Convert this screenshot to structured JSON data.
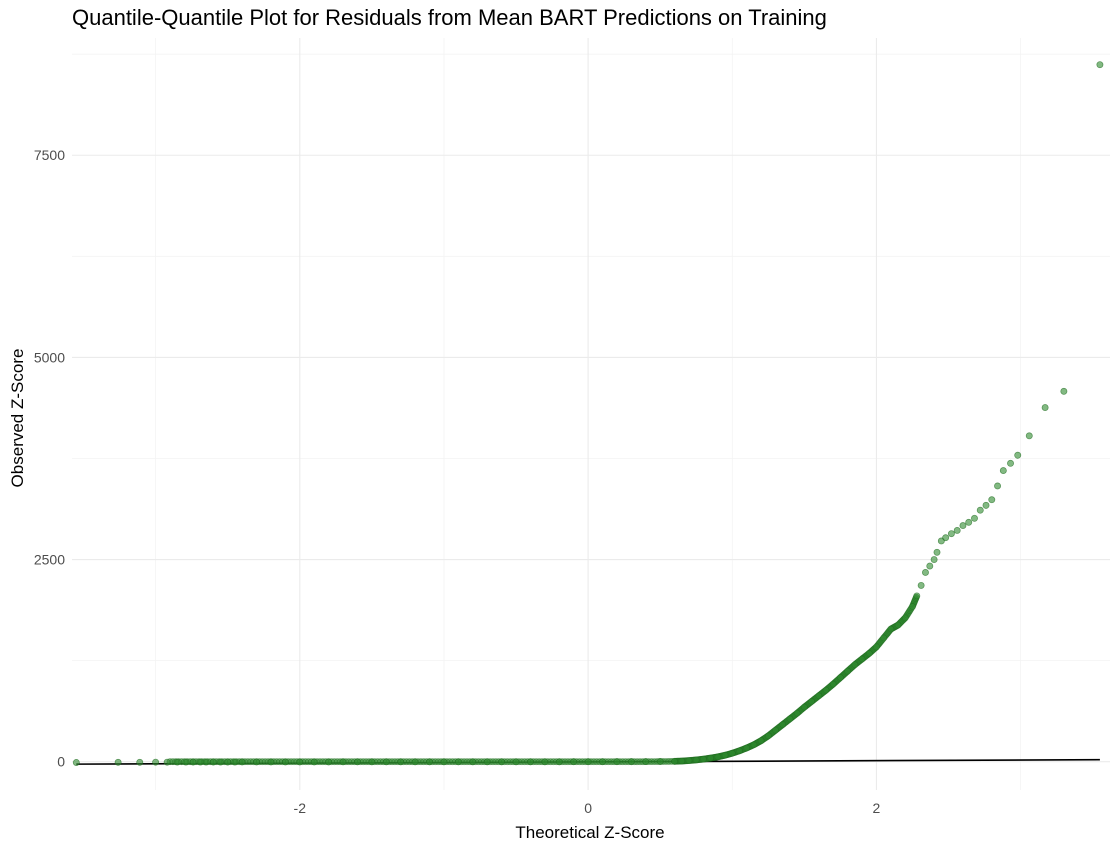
{
  "chart_data": {
    "type": "scatter",
    "title": "Quantile-Quantile Plot for Residuals from Mean BART Predictions on Training",
    "xlabel": "Theoretical Z-Score",
    "ylabel": "Observed Z-Score",
    "xlim": [
      -3.58,
      3.62
    ],
    "ylim": [
      -350,
      8950
    ],
    "x_ticks": [
      -2,
      0,
      2
    ],
    "x_tick_labels": [
      "-2",
      "0",
      "2"
    ],
    "x_minor_ticks": [
      -3,
      -1,
      1,
      3
    ],
    "y_ticks": [
      0,
      2500,
      5000,
      7500
    ],
    "y_tick_labels": [
      "0",
      "2500",
      "5000",
      "7500"
    ],
    "y_minor_ticks": [
      1250,
      3750,
      6250,
      8750
    ],
    "grid": true,
    "point_color": "#2e8b2e",
    "point_edge_color": "#1f6b1f",
    "point_opacity": 0.6,
    "reference_line": {
      "color": "#000000",
      "points": [
        [
          -3.55,
          -30
        ],
        [
          3.55,
          25
        ]
      ]
    },
    "series": [
      {
        "values": [
          [
            -3.55,
            -10
          ],
          [
            -3.26,
            -8
          ],
          [
            -3.11,
            -7
          ],
          [
            -3.0,
            -6
          ],
          [
            -2.92,
            -6
          ],
          [
            -2.85,
            -5
          ],
          [
            -2.79,
            -5
          ],
          [
            -2.74,
            -5
          ],
          [
            -2.69,
            -4
          ],
          [
            -2.65,
            -4
          ],
          [
            -2.6,
            -4
          ],
          [
            -2.55,
            -4
          ],
          [
            -2.5,
            -4
          ],
          [
            -2.45,
            -4
          ],
          [
            -2.4,
            -3
          ],
          [
            -2.3,
            -3
          ],
          [
            -2.2,
            -3
          ],
          [
            -2.1,
            -3
          ],
          [
            -2.0,
            -3
          ],
          [
            -1.9,
            -3
          ],
          [
            -1.8,
            -3
          ],
          [
            -1.7,
            -2
          ],
          [
            -1.6,
            -2
          ],
          [
            -1.5,
            -2
          ],
          [
            -1.4,
            -2
          ],
          [
            -1.3,
            -2
          ],
          [
            -1.2,
            -2
          ],
          [
            -1.1,
            -2
          ],
          [
            -1.0,
            -2
          ],
          [
            -0.9,
            -2
          ],
          [
            -0.8,
            -2
          ],
          [
            -0.7,
            -1
          ],
          [
            -0.6,
            -1
          ],
          [
            -0.5,
            -1
          ],
          [
            -0.4,
            -1
          ],
          [
            -0.3,
            -1
          ],
          [
            -0.2,
            -1
          ],
          [
            -0.1,
            0
          ],
          [
            0.0,
            0
          ],
          [
            0.1,
            0
          ],
          [
            0.2,
            1
          ],
          [
            0.3,
            1
          ],
          [
            0.4,
            2
          ],
          [
            0.5,
            3
          ],
          [
            0.6,
            5
          ],
          [
            0.65,
            8
          ],
          [
            0.7,
            14
          ],
          [
            0.75,
            22
          ],
          [
            0.8,
            32
          ],
          [
            0.85,
            45
          ],
          [
            0.9,
            60
          ],
          [
            0.95,
            80
          ],
          [
            1.0,
            105
          ],
          [
            1.05,
            135
          ],
          [
            1.1,
            170
          ],
          [
            1.15,
            210
          ],
          [
            1.2,
            260
          ],
          [
            1.25,
            320
          ],
          [
            1.3,
            390
          ],
          [
            1.35,
            460
          ],
          [
            1.4,
            530
          ],
          [
            1.45,
            600
          ],
          [
            1.5,
            675
          ],
          [
            1.55,
            745
          ],
          [
            1.6,
            815
          ],
          [
            1.65,
            885
          ],
          [
            1.7,
            960
          ],
          [
            1.75,
            1040
          ],
          [
            1.8,
            1120
          ],
          [
            1.85,
            1200
          ],
          [
            1.9,
            1270
          ],
          [
            1.95,
            1340
          ],
          [
            2.0,
            1420
          ],
          [
            2.05,
            1530
          ],
          [
            2.1,
            1640
          ],
          [
            2.15,
            1690
          ],
          [
            2.2,
            1780
          ],
          [
            2.25,
            1920
          ],
          [
            2.28,
            2050
          ],
          [
            2.31,
            2180
          ],
          [
            2.34,
            2340
          ],
          [
            2.37,
            2420
          ],
          [
            2.4,
            2500
          ],
          [
            2.42,
            2590
          ],
          [
            2.45,
            2730
          ],
          [
            2.48,
            2770
          ],
          [
            2.52,
            2820
          ],
          [
            2.56,
            2860
          ],
          [
            2.6,
            2920
          ],
          [
            2.64,
            2960
          ],
          [
            2.68,
            3010
          ],
          [
            2.72,
            3110
          ],
          [
            2.76,
            3170
          ],
          [
            2.8,
            3240
          ],
          [
            2.84,
            3410
          ],
          [
            2.88,
            3600
          ],
          [
            2.93,
            3690
          ],
          [
            2.98,
            3790
          ],
          [
            3.06,
            4030
          ],
          [
            3.17,
            4380
          ],
          [
            3.3,
            4580
          ],
          [
            3.55,
            8620
          ]
        ]
      }
    ]
  }
}
